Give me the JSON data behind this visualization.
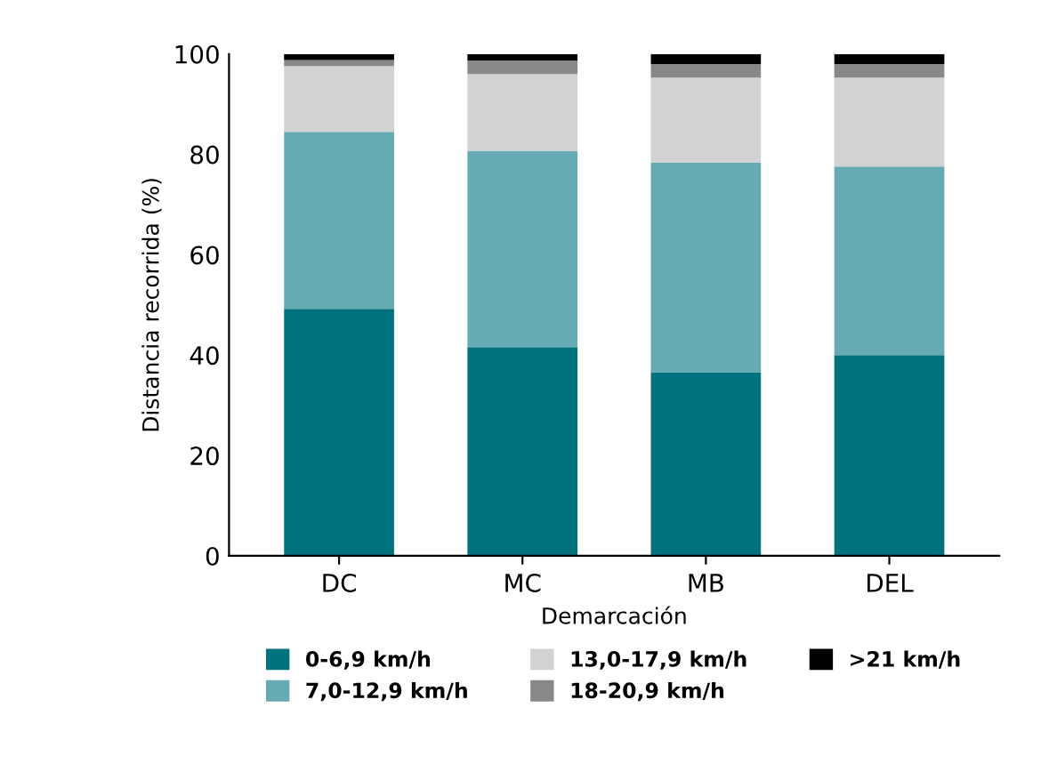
{
  "chart_data": {
    "type": "bar",
    "stacked": true,
    "xlabel": "Demarcación",
    "ylabel": "Distancia recorrida (%)",
    "categories": [
      "DC",
      "MC",
      "MB",
      "DEL"
    ],
    "series": [
      {
        "name": "0-6,9 km/h",
        "color": "#00737e",
        "values": [
          49.2,
          41.6,
          36.6,
          40.0
        ]
      },
      {
        "name": "7,0-12,9 km/h",
        "color": "#66aab3",
        "values": [
          35.3,
          39.1,
          41.8,
          37.6
        ]
      },
      {
        "name": "13,0-17,9 km/h",
        "color": "#d1d2d4",
        "values": [
          13.1,
          15.3,
          16.9,
          17.7
        ]
      },
      {
        "name": "18-20,9 km/h",
        "color": "#87888a",
        "values": [
          1.2,
          2.7,
          2.7,
          2.7
        ]
      },
      {
        "name": ">21 km/h",
        "color": "#000000",
        "values": [
          1.2,
          1.3,
          2.0,
          2.0
        ]
      }
    ],
    "ylim": [
      0,
      100
    ],
    "yticks": [
      0,
      20,
      40,
      60,
      80,
      100
    ],
    "grid": false,
    "legend": "bottom"
  }
}
